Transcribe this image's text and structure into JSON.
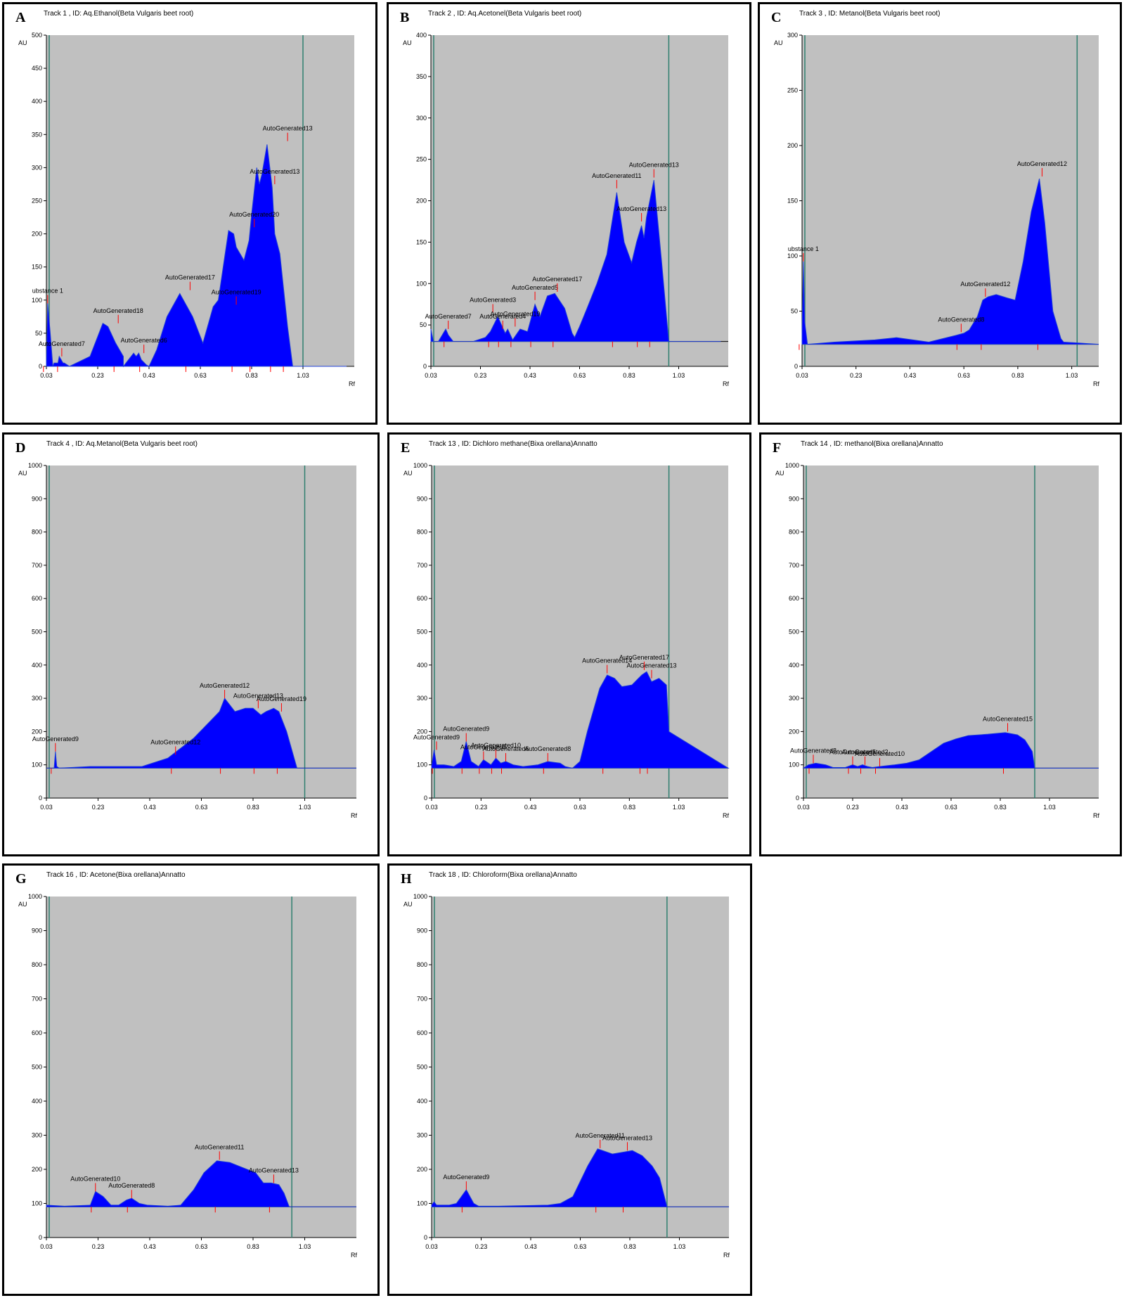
{
  "panels": [
    {
      "letter": "A",
      "title": "Track  1 , ID: Aq.Ethanol(Beta Vulgaris beet root)",
      "ylabel": "AU",
      "xlabel": "Rf"
    },
    {
      "letter": "B",
      "title": "Track  2 , ID: Aq.Acetonel(Beta Vulgaris beet root)",
      "ylabel": "AU",
      "xlabel": "Rf"
    },
    {
      "letter": "C",
      "title": "Track  3 , ID: Metanol(Beta Vulgaris beet root)",
      "ylabel": "AU",
      "xlabel": "Rf"
    },
    {
      "letter": "D",
      "title": "Track  4 , ID: Aq.Metanol(Beta Vulgaris beet root)",
      "ylabel": "AU",
      "xlabel": "Rf"
    },
    {
      "letter": "E",
      "title": "Track  13 , ID: Dichloro methane(Bixa orellana)Annatto",
      "ylabel": "AU",
      "xlabel": "Rf"
    },
    {
      "letter": "F",
      "title": "Track  14 , ID: methanol(Bixa orellana)Annatto",
      "ylabel": "AU",
      "xlabel": "Rf"
    },
    {
      "letter": "G",
      "title": "Track  16 , ID: Acetone(Bixa orellana)Annatto",
      "ylabel": "AU",
      "xlabel": "Rf"
    },
    {
      "letter": "H",
      "title": "Track  18 , ID: Chloroform(Bixa orellana)Annatto",
      "ylabel": "AU",
      "xlabel": "Rf"
    }
  ],
  "colors": {
    "plot_bg": "#c0c0c0",
    "fill": "#0000ff",
    "line": "#1f3fd8",
    "peak_marker": "#ff0000",
    "boundary": "#2f7f6f"
  },
  "chart_data": [
    {
      "type": "area",
      "title": "Track  1 , ID: Aq.Ethanol(Beta Vulgaris beet root)",
      "xlabel": "Rf",
      "ylabel": "AU",
      "xlim": [
        0.03,
        1.23
      ],
      "ylim": [
        0,
        500
      ],
      "xticks": [
        "0.03",
        "0.23",
        "0.43",
        "0.63",
        "0.83",
        "1.03"
      ],
      "yticks": [
        0,
        50,
        100,
        150,
        200,
        250,
        300,
        350,
        400,
        450,
        500
      ],
      "baseline": 0,
      "front_line": 1.03,
      "x": [
        0.03,
        0.035,
        0.045,
        0.055,
        0.06,
        0.075,
        0.08,
        0.095,
        0.1,
        0.12,
        0.2,
        0.22,
        0.25,
        0.27,
        0.3,
        0.33,
        0.33,
        0.36,
        0.37,
        0.38,
        0.39,
        0.4,
        0.42,
        0.43,
        0.46,
        0.5,
        0.55,
        0.6,
        0.64,
        0.68,
        0.7,
        0.74,
        0.76,
        0.77,
        0.8,
        0.82,
        0.83,
        0.85,
        0.86,
        0.87,
        0.89,
        0.91,
        0.92,
        0.94,
        0.97,
        0.99,
        1.03,
        1.2
      ],
      "y": [
        5,
        95,
        50,
        0,
        5,
        5,
        15,
        5,
        5,
        0,
        15,
        35,
        65,
        60,
        35,
        15,
        0,
        15,
        20,
        15,
        20,
        10,
        2,
        0,
        25,
        75,
        110,
        75,
        35,
        90,
        100,
        205,
        200,
        180,
        160,
        190,
        230,
        300,
        275,
        290,
        335,
        270,
        200,
        170,
        60,
        0,
        0,
        0
      ],
      "peaks": [
        {
          "label": "ubstance 1",
          "rf": 0.035,
          "y": 95
        },
        {
          "label": "AutoGenerated7",
          "rf": 0.09,
          "y": 15
        },
        {
          "label": "AutoGenerated18",
          "rf": 0.31,
          "y": 65
        },
        {
          "label": "AutoGenerated6",
          "rf": 0.41,
          "y": 20
        },
        {
          "label": "AutoGenerated17",
          "rf": 0.59,
          "y": 115
        },
        {
          "label": "AutoGenerated19",
          "rf": 0.77,
          "y": 93
        },
        {
          "label": "AutoGenerated20",
          "rf": 0.84,
          "y": 210
        },
        {
          "label": "AutoGenerated13",
          "rf": 0.92,
          "y": 275
        },
        {
          "label": "AutoGenerated13",
          "rf": 0.97,
          "y": 340
        }
      ]
    },
    {
      "type": "area",
      "title": "Track  2 , ID: Aq.Acetonel(Beta Vulgaris beet root)",
      "xlabel": "Rf",
      "ylabel": "AU",
      "xlim": [
        0.03,
        1.23
      ],
      "ylim": [
        0,
        400
      ],
      "xticks": [
        "0.03",
        "0.23",
        "0.43",
        "0.63",
        "0.83",
        "1.03"
      ],
      "yticks": [
        0,
        50,
        100,
        150,
        200,
        250,
        300,
        350,
        400
      ],
      "baseline": 30,
      "front_line": 0.99,
      "x": [
        0.03,
        0.04,
        0.06,
        0.08,
        0.09,
        0.1,
        0.12,
        0.2,
        0.22,
        0.25,
        0.27,
        0.3,
        0.33,
        0.34,
        0.36,
        0.39,
        0.42,
        0.45,
        0.47,
        0.5,
        0.53,
        0.57,
        0.6,
        0.61,
        0.63,
        0.66,
        0.7,
        0.74,
        0.78,
        0.81,
        0.84,
        0.86,
        0.88,
        0.89,
        0.9,
        0.93,
        0.96,
        0.99,
        1.2
      ],
      "y": [
        45,
        30,
        30,
        40,
        45,
        38,
        30,
        30,
        32,
        35,
        42,
        60,
        40,
        45,
        32,
        45,
        42,
        75,
        60,
        85,
        88,
        70,
        40,
        35,
        48,
        70,
        100,
        135,
        210,
        150,
        125,
        150,
        170,
        155,
        180,
        225,
        130,
        30,
        30
      ],
      "peaks": [
        {
          "label": "AutoGenerated7",
          "rf": 0.1,
          "y": 45
        },
        {
          "label": "AutoGenerated3",
          "rf": 0.28,
          "y": 65
        },
        {
          "label": "AutoGenerated4",
          "rf": 0.32,
          "y": 45
        },
        {
          "label": "AutoGenerated19",
          "rf": 0.37,
          "y": 48
        },
        {
          "label": "AutoGenerated5",
          "rf": 0.45,
          "y": 80
        },
        {
          "label": "AutoGenerated17",
          "rf": 0.54,
          "y": 90
        },
        {
          "label": "AutoGenerated11",
          "rf": 0.78,
          "y": 215
        },
        {
          "label": "AutoGenerated13",
          "rf": 0.88,
          "y": 175
        },
        {
          "label": "AutoGenerated13",
          "rf": 0.93,
          "y": 228
        }
      ]
    },
    {
      "type": "area",
      "title": "Track  3 , ID: Metanol(Beta Vulgaris beet root)",
      "xlabel": "Rf",
      "ylabel": "AU",
      "xlim": [
        0.03,
        1.13
      ],
      "ylim": [
        0,
        300
      ],
      "xticks": [
        "0.03",
        "0.23",
        "0.43",
        "0.63",
        "0.83",
        "1.03"
      ],
      "yticks": [
        0,
        50,
        100,
        150,
        200,
        250,
        300
      ],
      "baseline": 20,
      "front_line": 1.05,
      "x": [
        0.03,
        0.035,
        0.04,
        0.05,
        0.15,
        0.3,
        0.38,
        0.5,
        0.55,
        0.6,
        0.63,
        0.65,
        0.68,
        0.7,
        0.72,
        0.75,
        0.79,
        0.82,
        0.85,
        0.88,
        0.91,
        0.93,
        0.96,
        0.99,
        1.0,
        1.13
      ],
      "y": [
        30,
        95,
        40,
        20,
        22,
        24,
        26,
        22,
        25,
        28,
        30,
        33,
        45,
        60,
        63,
        65,
        62,
        60,
        95,
        140,
        170,
        130,
        50,
        25,
        22,
        20
      ],
      "peaks": [
        {
          "label": "ubstance 1",
          "rf": 0.035,
          "y": 95
        },
        {
          "label": "AutoGenerated8",
          "rf": 0.62,
          "y": 31
        },
        {
          "label": "AutoGenerated12",
          "rf": 0.71,
          "y": 63
        },
        {
          "label": "AutoGenerated12",
          "rf": 0.92,
          "y": 172
        }
      ]
    },
    {
      "type": "area",
      "title": "Track  4 , ID: Aq.Metanol(Beta Vulgaris beet root)",
      "xlabel": "Rf",
      "ylabel": "AU",
      "xlim": [
        0.03,
        1.23
      ],
      "ylim": [
        0,
        1000
      ],
      "xticks": [
        "0.03",
        "0.23",
        "0.43",
        "0.63",
        "0.83",
        "1.03"
      ],
      "yticks": [
        0,
        100,
        200,
        300,
        400,
        500,
        600,
        700,
        800,
        900,
        1000
      ],
      "baseline": 90,
      "front_line": 1.03,
      "x": [
        0.03,
        0.06,
        0.065,
        0.07,
        0.08,
        0.2,
        0.4,
        0.5,
        0.55,
        0.6,
        0.65,
        0.7,
        0.72,
        0.74,
        0.76,
        0.8,
        0.83,
        0.86,
        0.88,
        0.91,
        0.93,
        0.96,
        1.0,
        1.23
      ],
      "y": [
        90,
        90,
        140,
        95,
        90,
        95,
        95,
        120,
        150,
        180,
        220,
        260,
        300,
        280,
        260,
        270,
        270,
        250,
        260,
        270,
        260,
        200,
        90,
        90
      ],
      "peaks": [
        {
          "label": "AutoGenerated9",
          "rf": 0.065,
          "y": 140
        },
        {
          "label": "AutoGenerated12",
          "rf": 0.53,
          "y": 130
        },
        {
          "label": "AutoGenerated12",
          "rf": 0.72,
          "y": 300
        },
        {
          "label": "AutoGenerated13",
          "rf": 0.85,
          "y": 270
        },
        {
          "label": "AutoGenerated19",
          "rf": 0.94,
          "y": 260
        }
      ]
    },
    {
      "type": "area",
      "title": "Track  13 , ID: Dichloro methane(Bixa orellana)Annatto",
      "xlabel": "Rf",
      "ylabel": "AU",
      "xlim": [
        0.03,
        1.23
      ],
      "ylim": [
        0,
        1000
      ],
      "xticks": [
        "0.03",
        "0.23",
        "0.43",
        "0.63",
        "0.83",
        "1.03"
      ],
      "yticks": [
        0,
        100,
        200,
        300,
        400,
        500,
        600,
        700,
        800,
        900,
        1000
      ],
      "baseline": 90,
      "front_line": 0.99,
      "x": [
        0.03,
        0.04,
        0.05,
        0.08,
        0.12,
        0.15,
        0.17,
        0.19,
        0.22,
        0.24,
        0.27,
        0.29,
        0.31,
        0.33,
        0.36,
        0.4,
        0.46,
        0.5,
        0.55,
        0.57,
        0.6,
        0.63,
        0.66,
        0.71,
        0.74,
        0.77,
        0.8,
        0.84,
        0.88,
        0.9,
        0.92,
        0.95,
        0.98,
        0.99,
        1.23
      ],
      "y": [
        95,
        145,
        100,
        100,
        95,
        110,
        170,
        110,
        95,
        115,
        100,
        120,
        105,
        110,
        100,
        95,
        100,
        110,
        105,
        95,
        90,
        110,
        200,
        330,
        370,
        360,
        335,
        340,
        370,
        380,
        350,
        360,
        340,
        200,
        90
      ],
      "peaks": [
        {
          "label": "AutoGenerated9",
          "rf": 0.05,
          "y": 145
        },
        {
          "label": "AutoGenerated9",
          "rf": 0.17,
          "y": 170
        },
        {
          "label": "AutoGenerated5",
          "rf": 0.24,
          "y": 115
        },
        {
          "label": "AutoGenerated10",
          "rf": 0.29,
          "y": 120
        },
        {
          "label": "AutoGenerated6",
          "rf": 0.33,
          "y": 110
        },
        {
          "label": "AutoGenerated8",
          "rf": 0.5,
          "y": 110
        },
        {
          "label": "AutoGenerated14",
          "rf": 0.74,
          "y": 375
        },
        {
          "label": "AutoGenerated17",
          "rf": 0.89,
          "y": 385
        },
        {
          "label": "AutoGenerated13",
          "rf": 0.92,
          "y": 360
        }
      ]
    },
    {
      "type": "area",
      "title": "Track  14 , ID: methanol(Bixa orellana)Annatto",
      "xlabel": "Rf",
      "ylabel": "AU",
      "xlim": [
        0.03,
        1.23
      ],
      "ylim": [
        0,
        1000
      ],
      "xticks": [
        "0.03",
        "0.23",
        "0.43",
        "0.63",
        "0.83",
        "1.03"
      ],
      "yticks": [
        0,
        100,
        200,
        300,
        400,
        500,
        600,
        700,
        800,
        900,
        1000
      ],
      "baseline": 90,
      "front_line": 0.97,
      "x": [
        0.03,
        0.05,
        0.08,
        0.12,
        0.15,
        0.2,
        0.23,
        0.25,
        0.27,
        0.29,
        0.31,
        0.34,
        0.4,
        0.45,
        0.5,
        0.55,
        0.6,
        0.65,
        0.7,
        0.78,
        0.85,
        0.9,
        0.93,
        0.96,
        0.97,
        1.23
      ],
      "y": [
        90,
        100,
        105,
        100,
        92,
        92,
        100,
        95,
        100,
        95,
        92,
        95,
        100,
        105,
        115,
        140,
        165,
        178,
        188,
        192,
        197,
        190,
        175,
        140,
        90,
        90
      ],
      "peaks": [
        {
          "label": "AutoGenerated8",
          "rf": 0.07,
          "y": 105
        },
        {
          "label": "AutoGenerated5",
          "rf": 0.23,
          "y": 100
        },
        {
          "label": "AutoGenerated2",
          "rf": 0.28,
          "y": 100
        },
        {
          "label": "AutoGenerated10",
          "rf": 0.34,
          "y": 95
        },
        {
          "label": "AutoGenerated15",
          "rf": 0.86,
          "y": 200
        }
      ]
    },
    {
      "type": "area",
      "title": "Track  16 , ID: Acetone(Bixa orellana)Annatto",
      "xlabel": "Rf",
      "ylabel": "AU",
      "xlim": [
        0.03,
        1.23
      ],
      "ylim": [
        0,
        1000
      ],
      "xticks": [
        "0.03",
        "0.23",
        "0.43",
        "0.63",
        "0.83",
        "1.03"
      ],
      "yticks": [
        0,
        100,
        200,
        300,
        400,
        500,
        600,
        700,
        800,
        900,
        1000
      ],
      "baseline": 90,
      "front_line": 0.98,
      "x": [
        0.03,
        0.1,
        0.2,
        0.22,
        0.25,
        0.28,
        0.31,
        0.34,
        0.36,
        0.39,
        0.42,
        0.5,
        0.55,
        0.6,
        0.64,
        0.69,
        0.74,
        0.79,
        0.84,
        0.87,
        0.9,
        0.93,
        0.95,
        0.97,
        1.23
      ],
      "y": [
        95,
        92,
        95,
        135,
        120,
        95,
        95,
        110,
        115,
        100,
        95,
        92,
        95,
        140,
        190,
        225,
        220,
        205,
        190,
        160,
        160,
        155,
        130,
        90,
        90
      ],
      "peaks": [
        {
          "label": "AutoGenerated10",
          "rf": 0.22,
          "y": 135
        },
        {
          "label": "AutoGenerated8",
          "rf": 0.36,
          "y": 115
        },
        {
          "label": "AutoGenerated11",
          "rf": 0.7,
          "y": 228
        },
        {
          "label": "AutoGenerated13",
          "rf": 0.91,
          "y": 160
        }
      ]
    },
    {
      "type": "area",
      "title": "Track  18 , ID: Chloroform(Bixa orellana)Annatto",
      "xlabel": "Rf",
      "ylabel": "AU",
      "xlim": [
        0.03,
        1.23
      ],
      "ylim": [
        0,
        1000
      ],
      "xticks": [
        "0.03",
        "0.23",
        "0.43",
        "0.63",
        "0.83",
        "1.03"
      ],
      "yticks": [
        0,
        100,
        200,
        300,
        400,
        500,
        600,
        700,
        800,
        900,
        1000
      ],
      "baseline": 90,
      "front_line": 0.98,
      "x": [
        0.03,
        0.04,
        0.05,
        0.1,
        0.13,
        0.17,
        0.2,
        0.22,
        0.3,
        0.5,
        0.55,
        0.6,
        0.66,
        0.7,
        0.74,
        0.76,
        0.8,
        0.84,
        0.88,
        0.92,
        0.95,
        0.98,
        1.23
      ],
      "y": [
        95,
        105,
        95,
        95,
        100,
        140,
        100,
        92,
        92,
        95,
        100,
        120,
        210,
        260,
        250,
        245,
        250,
        255,
        240,
        210,
        175,
        90,
        90
      ],
      "peaks": [
        {
          "label": "AutoGenerated9",
          "rf": 0.17,
          "y": 140
        },
        {
          "label": "AutoGenerated11",
          "rf": 0.71,
          "y": 262
        },
        {
          "label": "AutoGenerated13",
          "rf": 0.82,
          "y": 255
        }
      ]
    }
  ]
}
